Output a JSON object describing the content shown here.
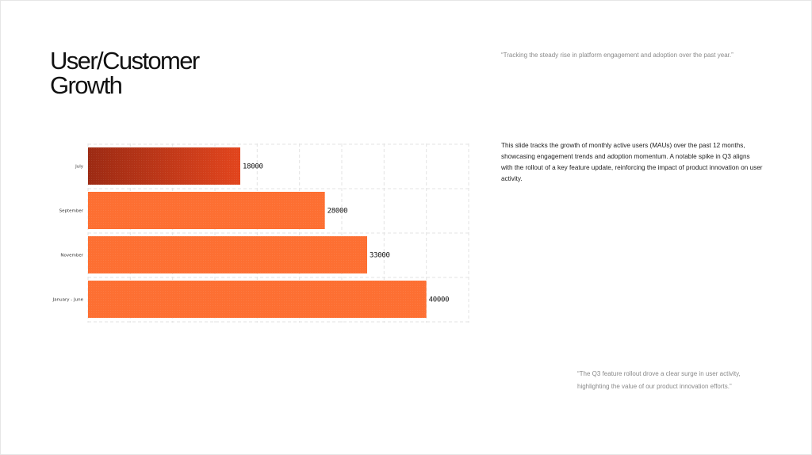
{
  "slide": {
    "title_lines": [
      "User/Customer",
      "Growth"
    ],
    "quote_top": "“Tracking the steady rise in platform engagement and adoption over the past year.”",
    "description": "This slide tracks the growth of monthly active users (MAUs) over the past 12 months, showcasing engagement trends and adoption momentum. A notable spike in Q3 aligns with the rollout of a key feature update, reinforcing the impact of product innovation on user activity.",
    "quote_bottom": "“The Q3 feature rollout drove a clear surge in user activity, highlighting the value of our product innovation efforts.”"
  },
  "colors": {
    "highlight_start": "#9c2a13",
    "highlight_end": "#e2451d",
    "bar": "#fd6f32",
    "grid": "#e3e3e3"
  },
  "chart_data": {
    "type": "bar",
    "orientation": "horizontal",
    "categories": [
      "July",
      "September",
      "November",
      "January - June"
    ],
    "values": [
      18000,
      28000,
      33000,
      40000
    ],
    "value_labels": [
      "18000",
      "28000",
      "33000",
      "40000"
    ],
    "highlighted_category": "July",
    "xlim": [
      0,
      45000
    ],
    "grid": true,
    "grid_style": "dashed",
    "title": "",
    "xlabel": "",
    "ylabel": ""
  }
}
